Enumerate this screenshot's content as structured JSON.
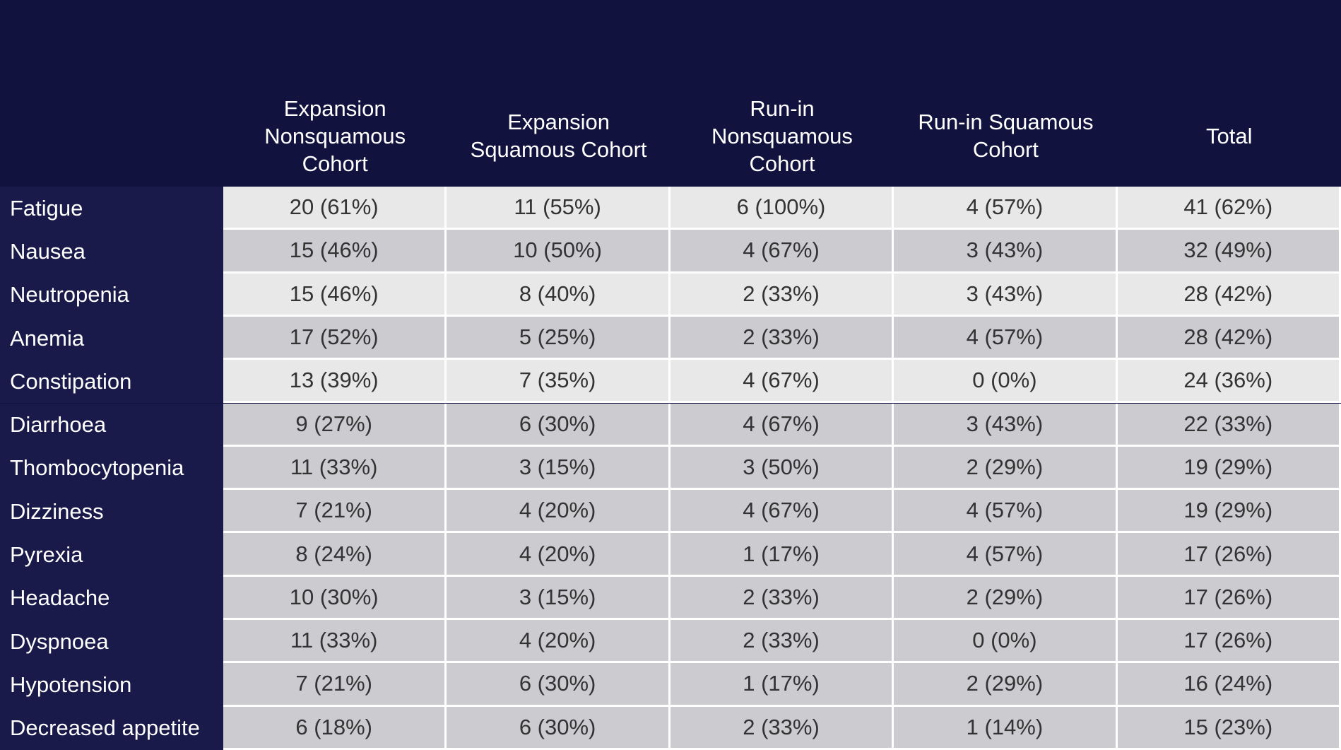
{
  "table": {
    "columns": [
      "Expansion Nonsquamous Cohort",
      "Expansion Squamous Cohort",
      "Run-in Nonsquamous Cohort",
      "Run-in Squamous Cohort",
      "Total"
    ],
    "rows": [
      [
        "Fatigue",
        "20 (61%)",
        "11 (55%)",
        "6 (100%)",
        "4 (57%)",
        "41 (62%)"
      ],
      [
        "Nausea",
        "15 (46%)",
        "10 (50%)",
        "4 (67%)",
        "3 (43%)",
        "32 (49%)"
      ],
      [
        "Neutropenia",
        "15 (46%)",
        "8 (40%)",
        "2 (33%)",
        "3 (43%)",
        "28 (42%)"
      ],
      [
        "Anemia",
        "17 (52%)",
        "5 (25%)",
        "2 (33%)",
        "4 (57%)",
        "28 (42%)"
      ],
      [
        "Constipation",
        "13 (39%)",
        "7 (35%)",
        "4 (67%)",
        "0 (0%)",
        "24 (36%)"
      ],
      [
        "Diarrhoea",
        "9 (27%)",
        "6 (30%)",
        "4 (67%)",
        "3 (43%)",
        "22 (33%)"
      ],
      [
        "Thombocytopenia",
        "11 (33%)",
        "3 (15%)",
        "3 (50%)",
        "2 (29%)",
        "19 (29%)"
      ],
      [
        "Dizziness",
        "7 (21%)",
        "4 (20%)",
        "4 (67%)",
        "4 (57%)",
        "19 (29%)"
      ],
      [
        "Pyrexia",
        "8 (24%)",
        "4 (20%)",
        "1 (17%)",
        "4 (57%)",
        "17 (26%)"
      ],
      [
        "Headache",
        "10 (30%)",
        "3 (15%)",
        "2 (33%)",
        "2 (29%)",
        "17 (26%)"
      ],
      [
        "Dyspnoea",
        "11 (33%)",
        "4 (20%)",
        "2 (33%)",
        "0 (0%)",
        "17 (26%)"
      ],
      [
        "Hypotension",
        "7 (21%)",
        "6 (30%)",
        "1 (17%)",
        "2 (29%)",
        "16 (24%)"
      ],
      [
        "Decreased appetite",
        "6 (18%)",
        "6 (30%)",
        "2 (33%)",
        "1 (14%)",
        "15 (23%)"
      ]
    ]
  }
}
